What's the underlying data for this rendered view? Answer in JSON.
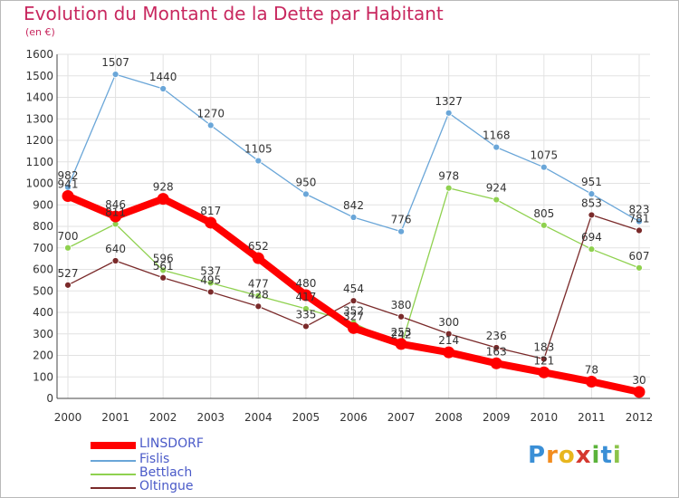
{
  "title": "Evolution du Montant de la Dette par Habitant",
  "subtitle": "(en €)",
  "logo": "Proxiti",
  "chart_data": {
    "type": "line",
    "title": "Evolution du Montant de la Dette par Habitant",
    "subtitle": "(en €)",
    "x": [
      "2000",
      "2001",
      "2002",
      "2003",
      "2004",
      "2005",
      "2006",
      "2007",
      "2008",
      "2009",
      "2010",
      "2011",
      "2012"
    ],
    "ylim": [
      0,
      1600
    ],
    "yticks": [
      0,
      100,
      200,
      300,
      400,
      500,
      600,
      700,
      800,
      900,
      1000,
      1100,
      1200,
      1300,
      1400,
      1500,
      1600
    ],
    "grid": true,
    "legend_position": "bottom-left",
    "series": [
      {
        "name": "LINSDORF",
        "color": "#ff0000",
        "values": [
          941,
          846,
          928,
          817,
          652,
          480,
          327,
          253,
          214,
          163,
          121,
          78,
          30
        ]
      },
      {
        "name": "Fislis",
        "color": "#6aa6d8",
        "values": [
          982,
          1507,
          1440,
          1270,
          1105,
          950,
          842,
          776,
          1327,
          1168,
          1075,
          951,
          823
        ]
      },
      {
        "name": "Bettlach",
        "color": "#8fd14f",
        "values": [
          700,
          811,
          596,
          537,
          477,
          417,
          352,
          242,
          978,
          924,
          805,
          694,
          607
        ]
      },
      {
        "name": "Oltingue",
        "color": "#7a2a2a",
        "values": [
          527,
          640,
          561,
          495,
          428,
          335,
          454,
          380,
          300,
          236,
          183,
          853,
          781
        ]
      }
    ]
  }
}
